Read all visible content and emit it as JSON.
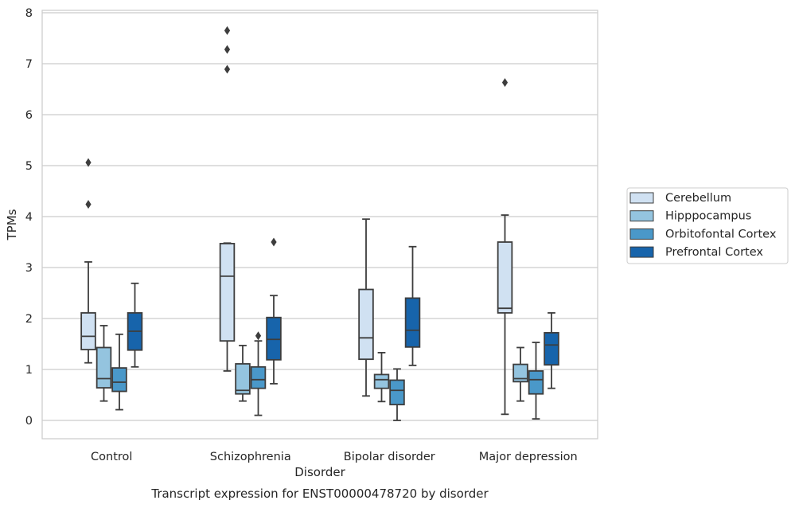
{
  "chart_data": {
    "type": "boxplot",
    "xlabel": "Disorder",
    "ylabel": "TPMs",
    "caption": "Transcript expression for ENST00000478720 by disorder",
    "categories": [
      "Control",
      "Schizophrenia",
      "Bipolar disorder",
      "Major depression"
    ],
    "yticks": [
      "0",
      "1",
      "2",
      "3",
      "4",
      "5",
      "6",
      "7",
      "8"
    ],
    "ylim": [
      -0.36,
      8.05
    ],
    "grid": true,
    "legend_position": "right",
    "series": [
      {
        "name": "Cerebellum",
        "color": "#d0e1f2",
        "boxes": [
          {
            "whisker_low": 1.13,
            "q1": 1.39,
            "median": 1.65,
            "q3": 2.11,
            "whisker_high": 3.11,
            "outliers": [
              4.24,
              5.06
            ]
          },
          {
            "whisker_low": 0.97,
            "q1": 1.56,
            "median": 2.83,
            "q3": 3.47,
            "whisker_high": 3.48,
            "outliers": [
              6.89,
              7.28,
              7.65
            ]
          },
          {
            "whisker_low": 0.48,
            "q1": 1.2,
            "median": 1.62,
            "q3": 2.57,
            "whisker_high": 3.95,
            "outliers": []
          },
          {
            "whisker_low": 0.12,
            "q1": 2.11,
            "median": 2.2,
            "q3": 3.5,
            "whisker_high": 4.03,
            "outliers": [
              6.63
            ]
          }
        ]
      },
      {
        "name": "Hipppocampus",
        "color": "#94c4df",
        "boxes": [
          {
            "whisker_low": 0.38,
            "q1": 0.64,
            "median": 0.82,
            "q3": 1.43,
            "whisker_high": 1.86,
            "outliers": []
          },
          {
            "whisker_low": 0.38,
            "q1": 0.52,
            "median": 0.59,
            "q3": 1.11,
            "whisker_high": 1.47,
            "outliers": []
          },
          {
            "whisker_low": 0.37,
            "q1": 0.63,
            "median": 0.8,
            "q3": 0.9,
            "whisker_high": 1.33,
            "outliers": []
          },
          {
            "whisker_low": 0.38,
            "q1": 0.76,
            "median": 0.82,
            "q3": 1.1,
            "whisker_high": 1.43,
            "outliers": []
          }
        ]
      },
      {
        "name": "Orbitofontal Cortex",
        "color": "#4a98c9",
        "boxes": [
          {
            "whisker_low": 0.21,
            "q1": 0.57,
            "median": 0.75,
            "q3": 1.03,
            "whisker_high": 1.69,
            "outliers": []
          },
          {
            "whisker_low": 0.1,
            "q1": 0.63,
            "median": 0.8,
            "q3": 1.05,
            "whisker_high": 1.56,
            "outliers": [
              1.66
            ]
          },
          {
            "whisker_low": 0.0,
            "q1": 0.31,
            "median": 0.59,
            "q3": 0.79,
            "whisker_high": 1.01,
            "outliers": []
          },
          {
            "whisker_low": 0.03,
            "q1": 0.52,
            "median": 0.8,
            "q3": 0.97,
            "whisker_high": 1.53,
            "outliers": []
          }
        ]
      },
      {
        "name": "Prefrontal Cortex",
        "color": "#1764ab",
        "boxes": [
          {
            "whisker_low": 1.05,
            "q1": 1.38,
            "median": 1.75,
            "q3": 2.11,
            "whisker_high": 2.69,
            "outliers": []
          },
          {
            "whisker_low": 0.72,
            "q1": 1.19,
            "median": 1.59,
            "q3": 2.02,
            "whisker_high": 2.45,
            "outliers": [
              3.5
            ]
          },
          {
            "whisker_low": 1.08,
            "q1": 1.44,
            "median": 1.77,
            "q3": 2.4,
            "whisker_high": 3.41,
            "outliers": []
          },
          {
            "whisker_low": 0.63,
            "q1": 1.09,
            "median": 1.48,
            "q3": 1.72,
            "whisker_high": 2.11,
            "outliers": []
          }
        ]
      }
    ]
  }
}
